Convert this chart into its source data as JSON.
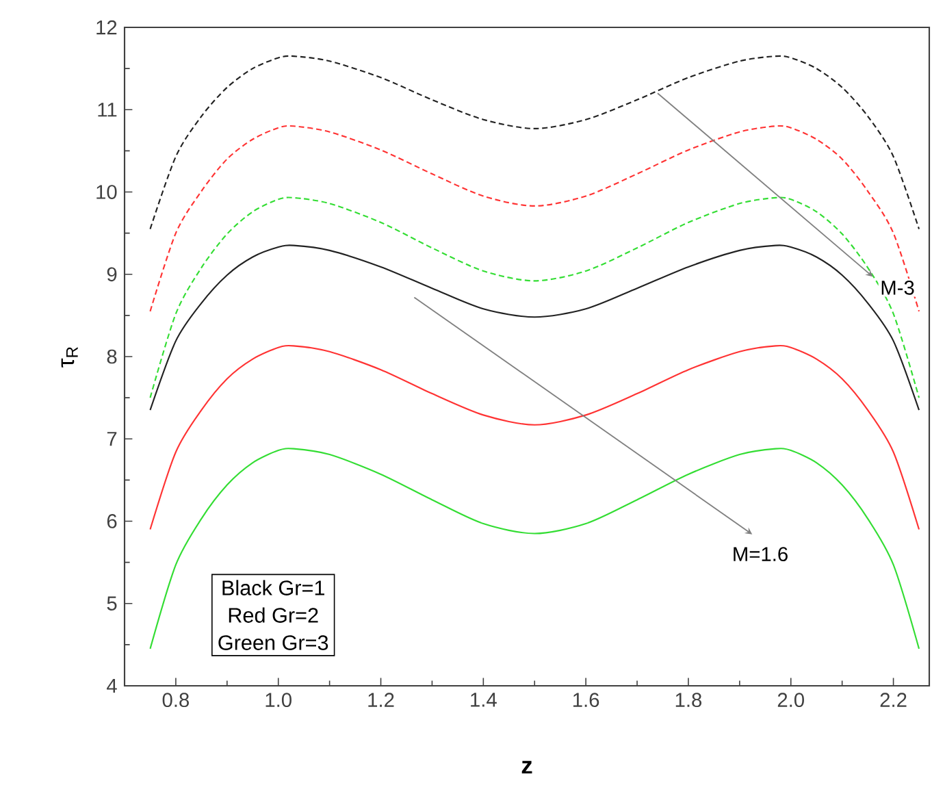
{
  "chart_data": {
    "type": "line",
    "xlabel": "z",
    "ylabel": "τ$_{R}$",
    "xlim": [
      0.7,
      2.27
    ],
    "ylim": [
      4,
      12
    ],
    "xticks": [
      0.8,
      {
        "value": 1.0,
        "label": "1.0"
      },
      1.2,
      1.4,
      1.6,
      1.8,
      {
        "value": 2.0,
        "label": "2.0"
      },
      2.2
    ],
    "yticks": [
      4,
      5,
      6,
      7,
      8,
      9,
      10,
      11,
      12
    ],
    "marker": "none",
    "grid": false,
    "x": [
      0.75,
      0.8,
      0.85,
      0.9,
      0.95,
      1.0,
      1.03,
      1.1,
      1.2,
      1.3,
      1.4,
      1.5,
      1.6,
      1.7,
      1.8,
      1.9,
      1.97,
      2.0,
      2.05,
      2.1,
      2.15,
      2.2,
      2.25
    ],
    "series": [
      {
        "color": "#222222",
        "line_style": "dashed",
        "values": [
          9.55,
          10.43,
          10.92,
          11.27,
          11.5,
          11.63,
          11.65,
          11.59,
          11.39,
          11.12,
          10.88,
          10.77,
          10.88,
          11.12,
          11.39,
          11.59,
          11.65,
          11.63,
          11.5,
          11.27,
          10.92,
          10.43,
          9.55
        ]
      },
      {
        "color": "#ff3333",
        "line_style": "dashed",
        "values": [
          8.55,
          9.5,
          10.01,
          10.4,
          10.64,
          10.78,
          10.8,
          10.73,
          10.51,
          10.22,
          9.95,
          9.83,
          9.95,
          10.22,
          10.51,
          10.73,
          10.8,
          10.78,
          10.64,
          10.4,
          10.01,
          9.5,
          8.55
        ]
      },
      {
        "color": "#33dd33",
        "line_style": "dashed",
        "values": [
          7.5,
          8.52,
          9.08,
          9.49,
          9.76,
          9.91,
          9.93,
          9.86,
          9.63,
          9.32,
          9.04,
          8.92,
          9.04,
          9.32,
          9.63,
          9.86,
          9.93,
          9.91,
          9.76,
          9.49,
          9.08,
          8.52,
          7.5
        ]
      },
      {
        "color": "#222222",
        "line_style": "solid",
        "values": [
          7.35,
          8.19,
          8.65,
          8.99,
          9.21,
          9.33,
          9.35,
          9.29,
          9.09,
          8.83,
          8.58,
          8.48,
          8.58,
          8.83,
          9.09,
          9.29,
          9.35,
          9.33,
          9.21,
          8.99,
          8.65,
          8.19,
          7.35
        ]
      },
      {
        "color": "#ff3333",
        "line_style": "solid",
        "values": [
          5.9,
          6.84,
          7.35,
          7.73,
          7.97,
          8.11,
          8.13,
          8.06,
          7.84,
          7.55,
          7.29,
          7.17,
          7.29,
          7.55,
          7.84,
          8.06,
          8.13,
          8.11,
          7.97,
          7.73,
          7.35,
          6.84,
          5.9
        ]
      },
      {
        "color": "#33dd33",
        "line_style": "solid",
        "values": [
          4.45,
          5.47,
          6.03,
          6.44,
          6.71,
          6.86,
          6.88,
          6.81,
          6.57,
          6.26,
          5.97,
          5.85,
          5.97,
          6.26,
          6.57,
          6.81,
          6.88,
          6.86,
          6.71,
          6.44,
          6.03,
          5.47,
          4.45
        ]
      }
    ],
    "annotations": [
      {
        "text": "M-3",
        "x": 2.16,
        "y": 8.97
      },
      "M=1.6",
      "Black Gr=1",
      "Red   Gr=2",
      "Green Gr=3"
    ]
  }
}
